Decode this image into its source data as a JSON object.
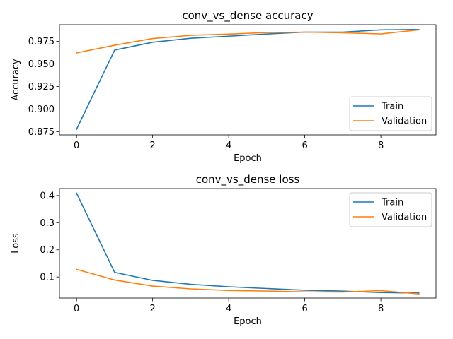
{
  "chart_data": [
    {
      "type": "line",
      "title": "conv_vs_dense accuracy",
      "xlabel": "Epoch",
      "ylabel": "Accuracy",
      "x": [
        0,
        1,
        2,
        3,
        4,
        5,
        6,
        7,
        8,
        9
      ],
      "xlim": [
        -0.45,
        9.45
      ],
      "ylim": [
        0.8714,
        0.9933
      ],
      "xticks": [
        0,
        2,
        4,
        6,
        8
      ],
      "yticks": [
        0.875,
        0.9,
        0.925,
        0.95,
        0.975
      ],
      "ytick_labels": [
        "0.875",
        "0.900",
        "0.925",
        "0.950",
        "0.975"
      ],
      "legend_position": "lower-right",
      "grid": false,
      "series": [
        {
          "name": "Train",
          "color": "#1f77b4",
          "values": [
            0.8777,
            0.9652,
            0.9739,
            0.9783,
            0.9806,
            0.983,
            0.9851,
            0.9851,
            0.9876,
            0.988
          ]
        },
        {
          "name": "Validation",
          "color": "#ff7f0e",
          "values": [
            0.9621,
            0.9706,
            0.978,
            0.9815,
            0.9829,
            0.9846,
            0.9851,
            0.9844,
            0.9831,
            0.9876
          ]
        }
      ]
    },
    {
      "type": "line",
      "title": "conv_vs_dense loss",
      "xlabel": "Epoch",
      "ylabel": "Loss",
      "x": [
        0,
        1,
        2,
        3,
        4,
        5,
        6,
        7,
        8,
        9
      ],
      "xlim": [
        -0.45,
        9.45
      ],
      "ylim": [
        0.0224,
        0.4257
      ],
      "xticks": [
        0,
        2,
        4,
        6,
        8
      ],
      "yticks": [
        0.1,
        0.2,
        0.3,
        0.4
      ],
      "ytick_labels": [
        "0.1",
        "0.2",
        "0.3",
        "0.4"
      ],
      "legend_position": "upper-right",
      "grid": false,
      "series": [
        {
          "name": "Train",
          "color": "#1f77b4",
          "values": [
            0.4088,
            0.1171,
            0.0875,
            0.073,
            0.064,
            0.0575,
            0.0513,
            0.048,
            0.0426,
            0.0408
          ]
        },
        {
          "name": "Validation",
          "color": "#ff7f0e",
          "values": [
            0.128,
            0.0889,
            0.0665,
            0.0562,
            0.0503,
            0.0481,
            0.0452,
            0.0445,
            0.0497,
            0.0378
          ]
        }
      ]
    }
  ]
}
